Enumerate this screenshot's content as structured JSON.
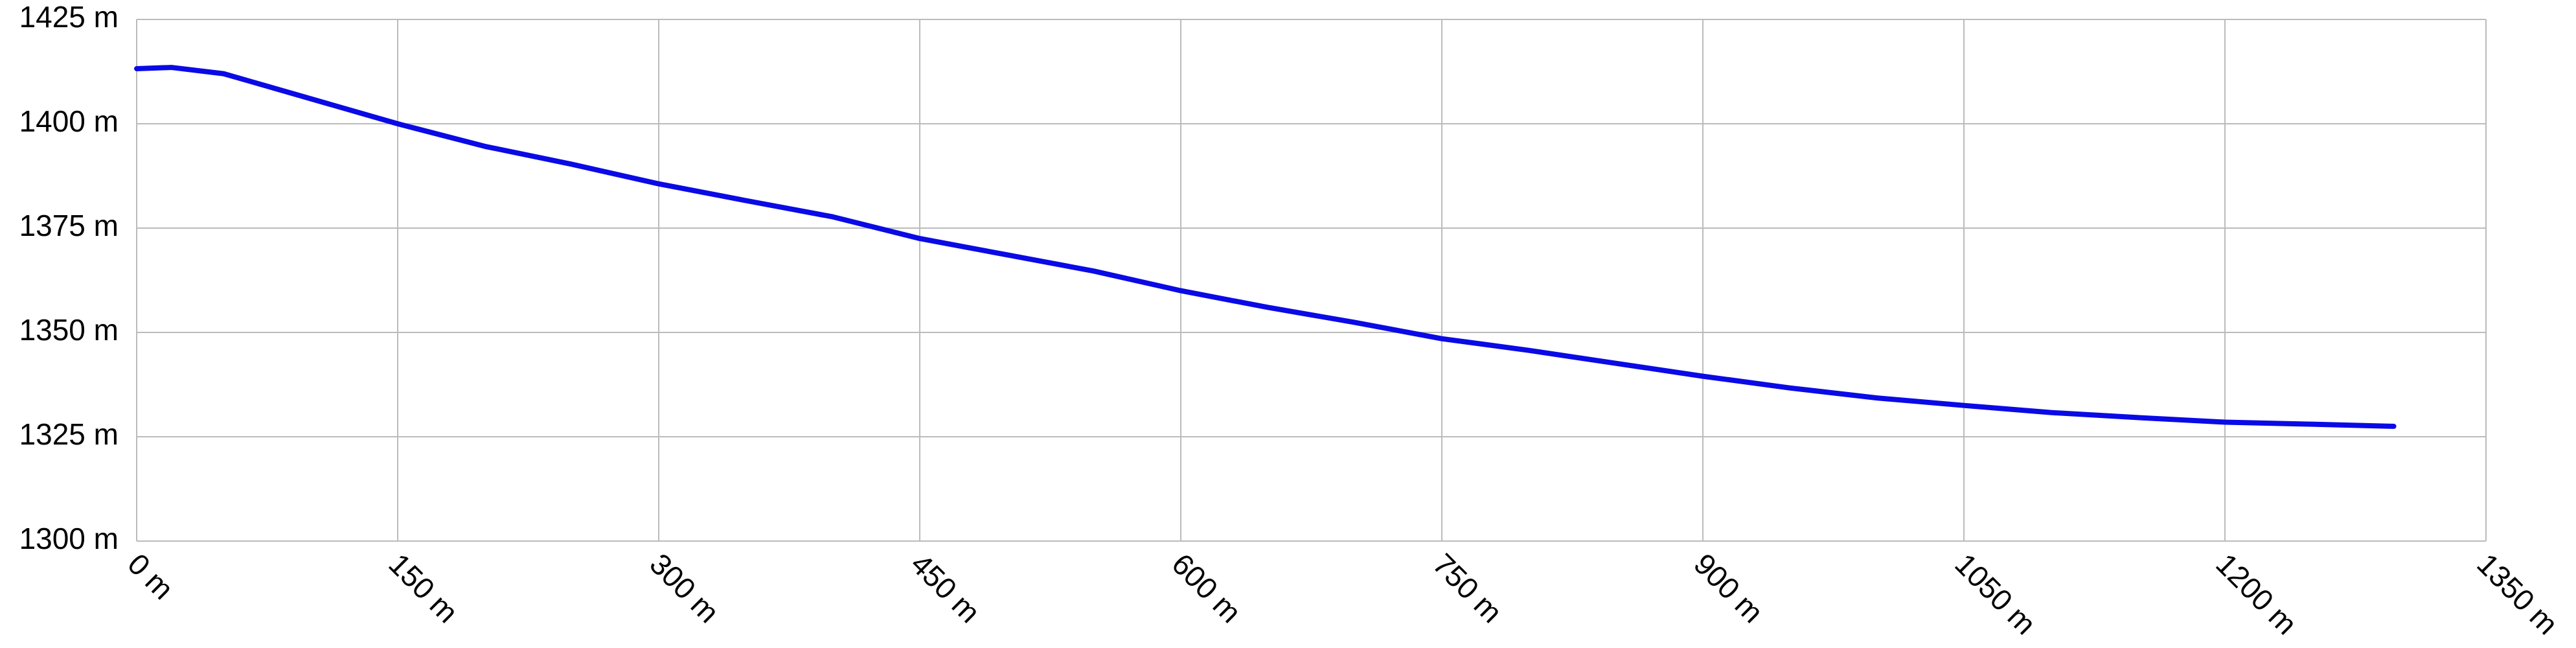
{
  "chart_data": {
    "type": "line",
    "x": [
      0,
      20,
      50,
      100,
      150,
      200,
      250,
      300,
      350,
      400,
      450,
      500,
      550,
      600,
      650,
      700,
      750,
      800,
      850,
      900,
      950,
      1000,
      1050,
      1100,
      1150,
      1200,
      1250,
      1297
    ],
    "series": [
      {
        "color": "#0a0ae6",
        "values": [
          1413.2,
          1413.5,
          1412,
          1406,
          1400,
          1394.6,
          1390.3,
          1385.6,
          1381.6,
          1377.7,
          1372.5,
          1368.6,
          1364.7,
          1360,
          1356,
          1352.4,
          1348.5,
          1345.7,
          1342.6,
          1339.5,
          1336.7,
          1334.3,
          1332.5,
          1330.8,
          1329.6,
          1328.5,
          1328,
          1327.5
        ]
      }
    ],
    "xlim": [
      0,
      1350
    ],
    "xticks": [
      {
        "value": 0,
        "label": "0 m"
      },
      {
        "value": 150,
        "label": "150 m"
      },
      {
        "value": 300,
        "label": "300 m"
      },
      {
        "value": 450,
        "label": "450 m"
      },
      {
        "value": 600,
        "label": "600 m"
      },
      {
        "value": 750,
        "label": "750 m"
      },
      {
        "value": 900,
        "label": "900 m"
      },
      {
        "value": 1050,
        "label": "1050 m"
      },
      {
        "value": 1200,
        "label": "1200 m"
      },
      {
        "value": 1350,
        "label": "1350 m"
      }
    ],
    "ylim": [
      1300,
      1425
    ],
    "yticks": [
      {
        "value": 1300,
        "label": "1300 m"
      },
      {
        "value": 1325,
        "label": "1325 m"
      },
      {
        "value": 1350,
        "label": "1350 m"
      },
      {
        "value": 1375,
        "label": "1375 m"
      },
      {
        "value": 1400,
        "label": "1400 m"
      },
      {
        "value": 1425,
        "label": "1425 m"
      }
    ],
    "grid": true
  }
}
